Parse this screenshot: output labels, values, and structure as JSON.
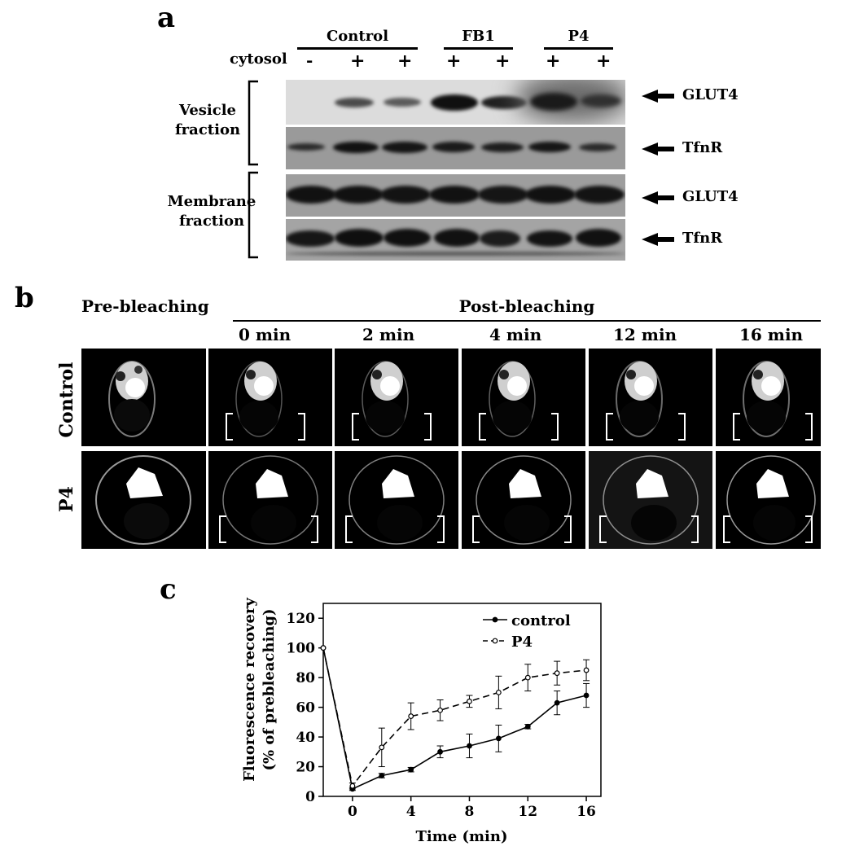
{
  "panel_a": {
    "letter": "a",
    "groups": [
      "Control",
      "FB1",
      "P4"
    ],
    "row_label": "cytosol",
    "signs": [
      "-",
      "+",
      "+",
      "+",
      "+",
      "+",
      "+"
    ],
    "vesicle_label_1": "Vesicle",
    "vesicle_label_2": "fraction",
    "membrane_label_1": "Membrane",
    "membrane_label_2": "fraction",
    "arrows": [
      "GLUT4",
      "TfnR",
      "GLUT4",
      "TfnR"
    ]
  },
  "panel_b": {
    "letter": "b",
    "pre_label": "Pre-bleaching",
    "post_label": "Post-bleaching",
    "times": [
      "0 min",
      "2 min",
      "4 min",
      "12 min",
      "16 min"
    ],
    "row_labels": [
      "Control",
      "P4"
    ]
  },
  "panel_c": {
    "letter": "c"
  },
  "chart_data": {
    "type": "line",
    "xlabel": "Time (min)",
    "ylabel_line1": "Fluorescence recovery",
    "ylabel_line2": "(% of prebleaching)",
    "xlim": [
      -2,
      17
    ],
    "ylim": [
      0,
      130
    ],
    "xticks": [
      0,
      4,
      8,
      12,
      16
    ],
    "yticks": [
      0,
      20,
      40,
      60,
      80,
      100,
      120
    ],
    "legend_position": "top-right",
    "series": [
      {
        "name": "control",
        "style": "solid-filled",
        "x": [
          -2,
          0,
          2,
          4,
          6,
          8,
          10,
          12,
          14,
          16
        ],
        "y": [
          100,
          5,
          14,
          18,
          30,
          34,
          39,
          47,
          63,
          68
        ],
        "err": [
          0,
          1,
          1.5,
          1.5,
          4,
          8,
          9,
          1.5,
          8,
          8
        ]
      },
      {
        "name": "P4",
        "style": "dashed-open",
        "x": [
          -2,
          0,
          2,
          4,
          6,
          8,
          10,
          12,
          14,
          16
        ],
        "y": [
          100,
          7,
          33,
          54,
          58,
          64,
          70,
          80,
          83,
          85
        ],
        "err": [
          0,
          2,
          13,
          9,
          7,
          4,
          11,
          9,
          8,
          7
        ]
      }
    ]
  }
}
